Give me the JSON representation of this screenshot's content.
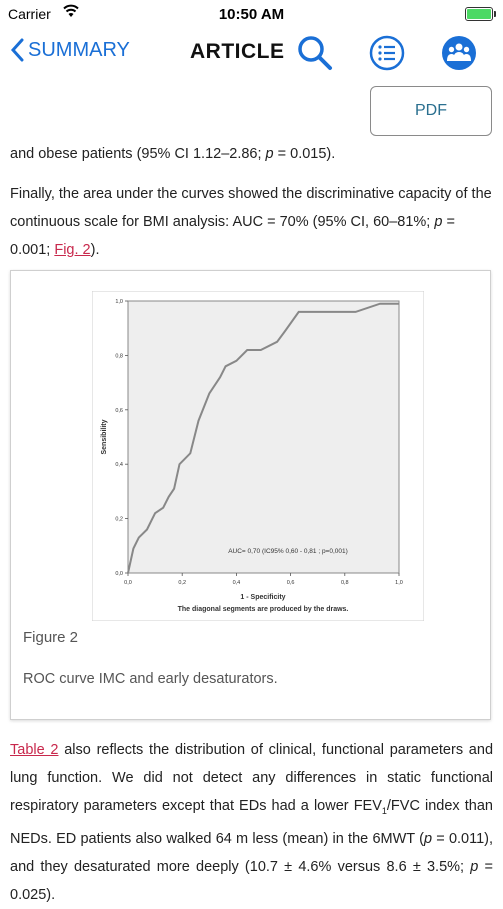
{
  "status_bar": {
    "carrier": "Carrier",
    "time": "10:50 AM"
  },
  "nav": {
    "back_label": "SUMMARY",
    "title": "ARTICLE"
  },
  "pdf_button": "PDF",
  "para1": {
    "text": "and obese patients (95% CI 1.12–2.86; ",
    "p_var": "p",
    "p_rest": " = 0.015)."
  },
  "para2": {
    "text": "Finally, the area under the curves showed the discriminative capacity of the continuous scale for BMI analysis: AUC = 70% (95% CI, 60–81%; ",
    "p_var": "p",
    "p_rest": " = 0.001; ",
    "link": "Fig. 2",
    "end": ")."
  },
  "figure": {
    "label": "Figure 2",
    "caption": "ROC curve IMC and early desaturators.",
    "chart_data": {
      "type": "line",
      "ylabel": "Sensibility",
      "xlabel": "1 - Specificity",
      "footnote": "The diagonal segments are produced by the draws.",
      "annotation": "AUC= 0,70 (IC95% 0,60 - 0,81 ; p=0,001)",
      "x_ticks": [
        "0,0",
        "0,2",
        "0,4",
        "0,6",
        "0,8",
        "1,0"
      ],
      "y_ticks": [
        "0,0",
        "0,2",
        "0,4",
        "0,6",
        "0,8",
        "1,0"
      ],
      "xlim": [
        0,
        1
      ],
      "ylim": [
        0,
        1
      ],
      "x": [
        0,
        0.02,
        0.04,
        0.07,
        0.09,
        0.1,
        0.13,
        0.15,
        0.17,
        0.19,
        0.23,
        0.26,
        0.3,
        0.34,
        0.36,
        0.4,
        0.44,
        0.49,
        0.55,
        0.58,
        0.63,
        0.69,
        0.75,
        0.84,
        0.93,
        0.96,
        1.0
      ],
      "y": [
        0,
        0.09,
        0.13,
        0.16,
        0.2,
        0.22,
        0.24,
        0.28,
        0.31,
        0.4,
        0.44,
        0.56,
        0.66,
        0.72,
        0.76,
        0.78,
        0.82,
        0.82,
        0.85,
        0.89,
        0.96,
        0.96,
        0.96,
        0.96,
        0.99,
        0.99,
        0.99
      ]
    }
  },
  "para3": {
    "link": "Table 2",
    "t1": " also reflects the distribution of clinical, functional parameters and lung function. We did not detect any differences in static functional respiratory parameters except that EDs had a lower FEV",
    "sub": "1",
    "t2": "/FVC index than NEDs. ED patients also walked 64 m less (mean) in the 6MWT (",
    "p_var": "p",
    "t3": " = 0.011), and they desaturated more deeply (10.7 ± 4.6% versus 8.6 ± 3.5%; ",
    "p_var2": "p",
    "t4": " = 0.025)."
  }
}
